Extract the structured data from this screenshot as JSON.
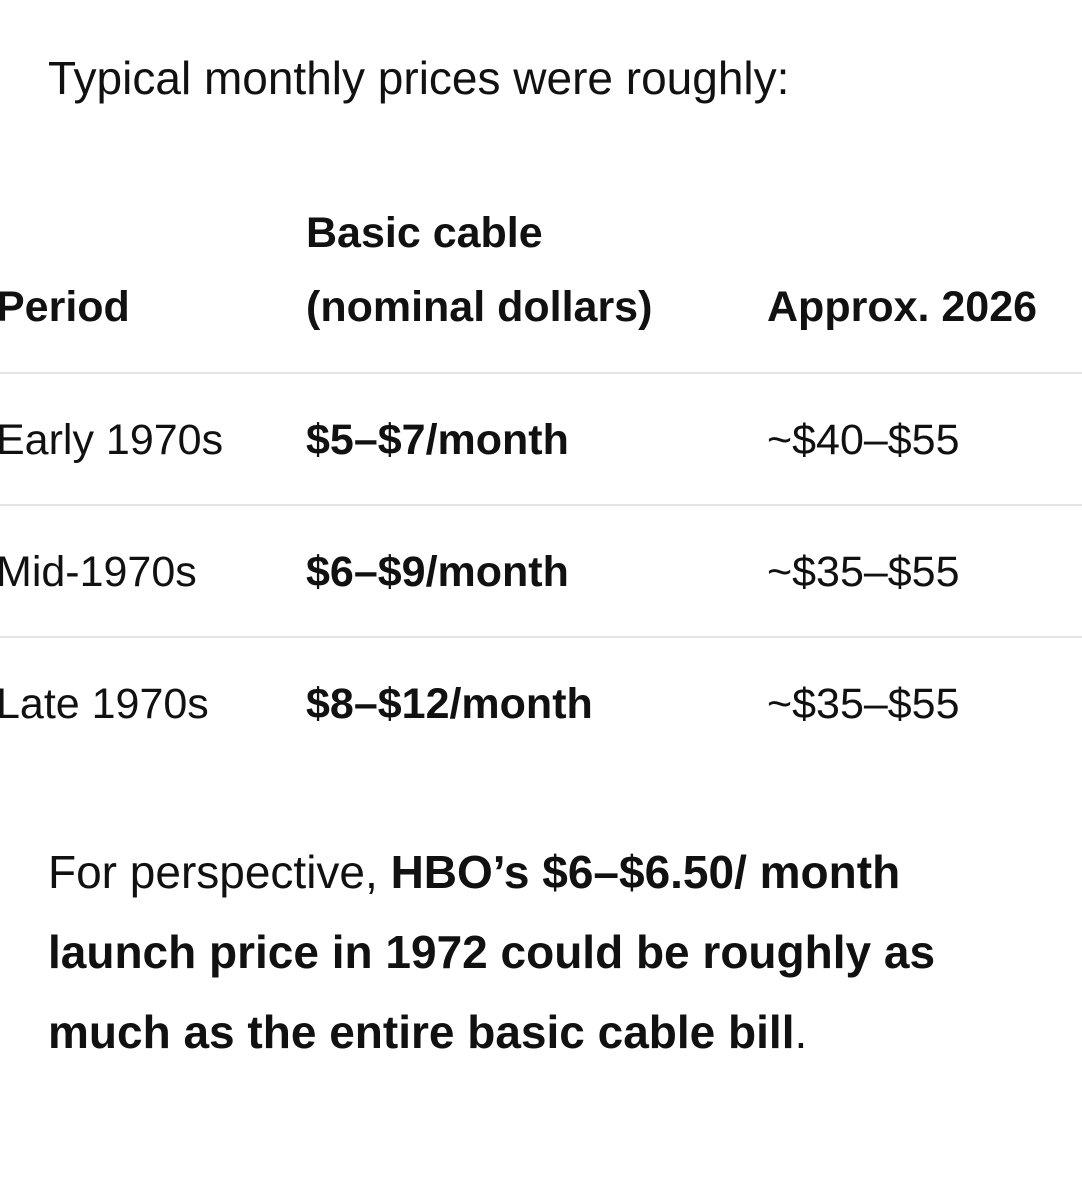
{
  "intro": "Typical monthly prices were roughly:",
  "table": {
    "headers": [
      "Period",
      "Basic cable (nominal dollars)",
      "Approx. 2026"
    ],
    "rows": [
      [
        "Early 1970s",
        "$5–$7/month",
        "~$40–$55"
      ],
      [
        "Mid-1970s",
        "$6–$9/month",
        "~$35–$55"
      ],
      [
        "Late 1970s",
        "$8–$12/month",
        "~$35–$55"
      ]
    ]
  },
  "note": {
    "lead": "For perspective, ",
    "bold": "HBO’s $6–$6.50/ month launch price in 1972 could be roughly as much as the entire basic cable bill",
    "end": "."
  }
}
